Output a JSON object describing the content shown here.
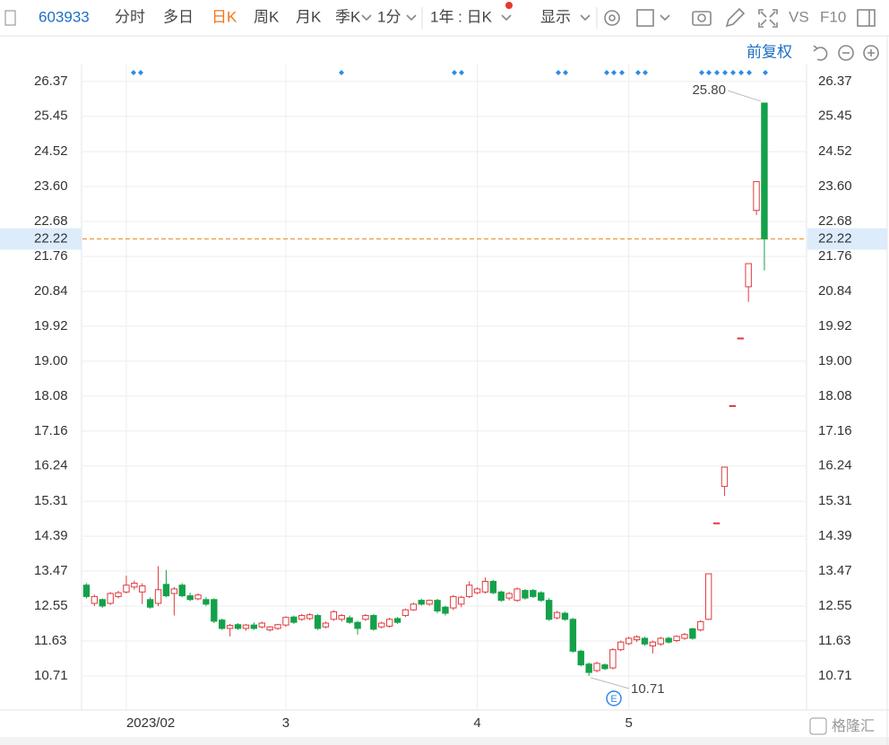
{
  "toolbar": {
    "code": "603933",
    "tabs": [
      "分时",
      "多日",
      "日K",
      "周K",
      "月K",
      "季K",
      "1分"
    ],
    "period": "1年 : 日K",
    "display": "显示",
    "vs": "VS",
    "f10": "F10",
    "adjust": "前复权"
  },
  "watermark": "格隆汇",
  "chart_data": {
    "type": "candlestick",
    "categories": [
      null,
      null,
      null,
      null,
      null,
      "2023/02",
      null,
      null,
      null,
      null,
      null,
      null,
      null,
      null,
      null,
      null,
      null,
      null,
      null,
      null,
      null,
      null,
      null,
      null,
      null,
      "3",
      null,
      null,
      null,
      null,
      null,
      null,
      null,
      null,
      null,
      null,
      null,
      null,
      null,
      null,
      null,
      null,
      null,
      null,
      null,
      null,
      null,
      null,
      null,
      "4",
      null,
      null,
      null,
      null,
      null,
      null,
      null,
      null,
      null,
      null,
      null,
      null,
      null,
      null,
      null,
      null,
      null,
      null,
      "5",
      null,
      null,
      null,
      null,
      null,
      null,
      null,
      null,
      null,
      null,
      null,
      null,
      null,
      null,
      null,
      null,
      null
    ],
    "open": [
      13.1,
      12.62,
      12.72,
      12.62,
      12.8,
      12.92,
      13.05,
      12.92,
      12.72,
      12.62,
      13.12,
      12.88,
      13.1,
      12.82,
      12.74,
      12.72,
      12.72,
      12.18,
      11.96,
      12.06,
      11.96,
      12.05,
      12.0,
      11.92,
      11.96,
      12.05,
      12.26,
      12.2,
      12.22,
      12.3,
      12.0,
      12.2,
      12.2,
      12.24,
      12.12,
      12.2,
      12.3,
      12.0,
      12.02,
      12.22,
      12.3,
      12.45,
      12.7,
      12.6,
      12.7,
      12.52,
      12.5,
      12.6,
      12.8,
      12.9,
      12.92,
      13.2,
      12.92,
      12.76,
      12.7,
      12.96,
      12.96,
      12.9,
      12.7,
      12.24,
      12.36,
      12.2,
      11.36,
      11.02,
      10.85,
      11.0,
      10.92,
      11.4,
      11.56,
      11.66,
      11.7,
      11.5,
      11.55,
      11.7,
      11.64,
      11.7,
      11.95,
      11.92,
      12.2,
      14.74,
      15.7,
      17.83,
      19.61,
      20.96,
      22.97,
      25.8
    ],
    "high": [
      13.15,
      12.85,
      12.75,
      12.92,
      12.95,
      13.35,
      13.22,
      13.15,
      12.78,
      13.6,
      13.5,
      13.05,
      13.15,
      12.9,
      12.88,
      12.78,
      12.75,
      12.22,
      12.08,
      12.1,
      12.08,
      12.12,
      12.14,
      12.02,
      12.08,
      12.28,
      12.3,
      12.34,
      12.36,
      12.34,
      12.14,
      12.44,
      12.34,
      12.3,
      12.16,
      12.34,
      12.34,
      12.14,
      12.24,
      12.26,
      12.48,
      12.64,
      12.74,
      12.72,
      12.74,
      12.56,
      12.84,
      12.82,
      13.2,
      13.04,
      13.3,
      13.24,
      12.96,
      12.92,
      13.04,
      13.0,
      13.0,
      12.94,
      12.76,
      12.42,
      12.4,
      12.24,
      11.4,
      11.06,
      11.08,
      11.04,
      11.44,
      11.64,
      11.74,
      11.78,
      11.74,
      11.64,
      11.74,
      11.74,
      11.78,
      11.84,
      11.98,
      12.18,
      13.4,
      14.74,
      16.21,
      17.83,
      19.61,
      21.57,
      23.73,
      25.8
    ],
    "low": [
      12.75,
      12.55,
      12.5,
      12.58,
      12.75,
      12.88,
      12.98,
      12.6,
      12.48,
      12.55,
      12.78,
      12.3,
      12.78,
      12.68,
      12.7,
      12.55,
      12.1,
      11.92,
      11.75,
      11.92,
      11.9,
      11.92,
      11.96,
      11.88,
      11.92,
      12.0,
      12.08,
      12.16,
      12.18,
      11.92,
      11.96,
      12.16,
      12.14,
      12.08,
      11.8,
      12.16,
      11.9,
      11.96,
      11.98,
      12.08,
      12.26,
      12.42,
      12.56,
      12.56,
      12.36,
      12.3,
      12.44,
      12.52,
      12.76,
      12.86,
      12.88,
      12.86,
      12.66,
      12.7,
      12.66,
      12.72,
      12.76,
      12.66,
      12.16,
      12.2,
      12.16,
      11.32,
      10.96,
      10.71,
      10.8,
      10.86,
      10.88,
      11.36,
      11.52,
      11.6,
      11.5,
      11.3,
      11.5,
      11.56,
      11.6,
      11.66,
      11.66,
      11.88,
      12.18,
      14.74,
      15.45,
      17.83,
      19.61,
      20.56,
      22.85,
      21.39
    ],
    "close": [
      12.8,
      12.8,
      12.55,
      12.88,
      12.9,
      13.1,
      13.15,
      13.08,
      12.52,
      12.98,
      12.82,
      13.0,
      12.82,
      12.72,
      12.84,
      12.6,
      12.15,
      11.96,
      12.04,
      11.96,
      12.05,
      11.96,
      12.1,
      12.0,
      12.06,
      12.25,
      12.12,
      12.3,
      12.32,
      11.96,
      12.1,
      12.4,
      12.3,
      12.12,
      11.96,
      12.3,
      11.94,
      12.1,
      12.2,
      12.12,
      12.45,
      12.6,
      12.6,
      12.7,
      12.42,
      12.36,
      12.8,
      12.78,
      13.1,
      13.0,
      13.2,
      12.9,
      12.7,
      12.88,
      13.0,
      12.76,
      12.8,
      12.7,
      12.2,
      12.38,
      12.2,
      11.36,
      11.0,
      10.8,
      11.04,
      10.9,
      11.4,
      11.6,
      11.7,
      11.74,
      11.55,
      11.6,
      11.7,
      11.6,
      11.75,
      11.8,
      11.7,
      12.14,
      13.4,
      14.74,
      16.21,
      17.83,
      19.61,
      21.57,
      23.73,
      22.22
    ],
    "up_color": "#e0393e",
    "down_color": "#14a14a",
    "ylim": [
      9.81,
      27.57
    ],
    "yticks": [
      26.37,
      25.45,
      24.52,
      {
        "value": 23.6,
        "label": "23.60"
      },
      22.68,
      21.76,
      20.84,
      19.92,
      {
        "value": 19,
        "label": "19.00"
      },
      18.08,
      17.16,
      16.24,
      15.31,
      14.39,
      13.47,
      12.55,
      11.63,
      10.71
    ],
    "current_price": 22.22,
    "current_color": "#f08a24",
    "max_label": "25.80",
    "min_label": "10.71",
    "event_icon": "E",
    "grid": true
  }
}
